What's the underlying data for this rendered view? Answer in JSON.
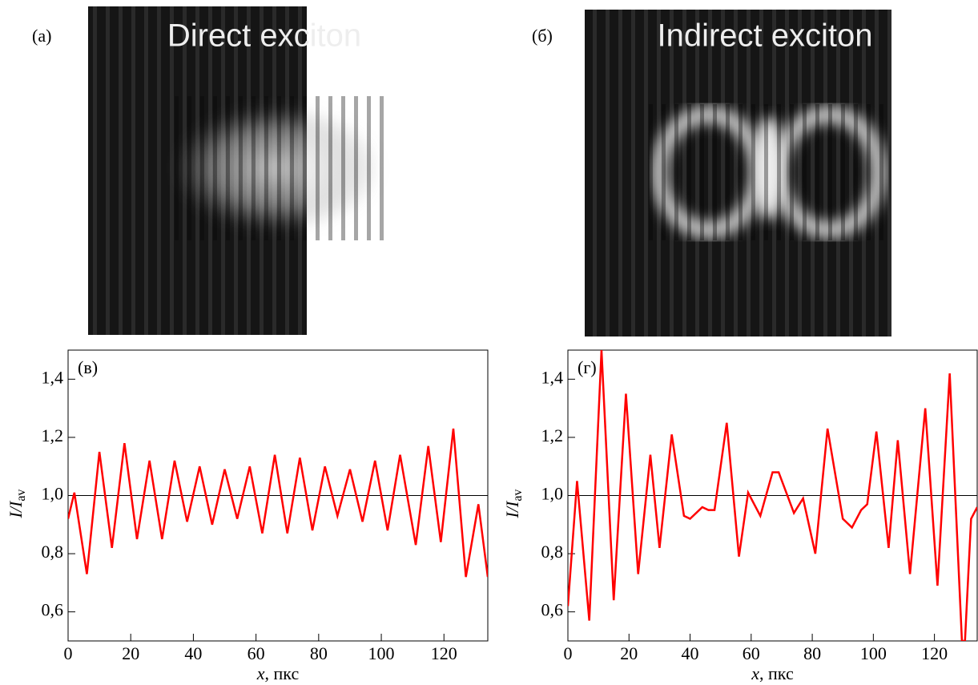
{
  "images": [
    {
      "label": "(a)",
      "title": "Direct exciton"
    },
    {
      "label": "(б)",
      "title": "Indirect exciton"
    }
  ],
  "chart_data": [
    {
      "type": "line",
      "panel": "(в)",
      "ylabel": "I/I",
      "ylabel_sub": "av",
      "xlabel_var": "x",
      "xlabel_unit": ", пкс",
      "color": "#ff0000",
      "hline": 1,
      "xlim": [
        0,
        134
      ],
      "ylim": [
        0.5,
        1.5
      ],
      "xticks": [
        0,
        20,
        40,
        60,
        80,
        100,
        120
      ],
      "yticks": [
        {
          "value": 0.6,
          "label": "0,6"
        },
        {
          "value": 0.8,
          "label": "0,8"
        },
        {
          "value": 1.0,
          "label": "1,0"
        },
        {
          "value": 1.2,
          "label": "1,2"
        },
        {
          "value": 1.4,
          "label": "1,4"
        }
      ],
      "x": [
        0,
        2,
        6,
        10,
        14,
        18,
        22,
        26,
        30,
        34,
        38,
        42,
        46,
        50,
        54,
        58,
        62,
        66,
        70,
        74,
        78,
        82,
        86,
        90,
        94,
        98,
        102,
        106,
        111,
        115,
        119,
        123,
        127,
        131,
        134
      ],
      "values": [
        0.92,
        1.01,
        0.73,
        1.15,
        0.82,
        1.18,
        0.85,
        1.12,
        0.85,
        1.12,
        0.91,
        1.1,
        0.9,
        1.09,
        0.92,
        1.1,
        0.87,
        1.14,
        0.87,
        1.13,
        0.88,
        1.1,
        0.93,
        1.09,
        0.91,
        1.12,
        0.88,
        1.14,
        0.83,
        1.17,
        0.84,
        1.23,
        0.72,
        0.97,
        0.72
      ]
    },
    {
      "type": "line",
      "panel": "(г)",
      "ylabel": "I/I",
      "ylabel_sub": "av",
      "xlabel_var": "x",
      "xlabel_unit": ", пкс",
      "color": "#ff0000",
      "hline": 1,
      "xlim": [
        0,
        134
      ],
      "ylim": [
        0.5,
        1.5
      ],
      "xticks": [
        0,
        20,
        40,
        60,
        80,
        100,
        120
      ],
      "yticks": [
        {
          "value": 0.6,
          "label": "0,6"
        },
        {
          "value": 0.8,
          "label": "0,8"
        },
        {
          "value": 1.0,
          "label": "1,0"
        },
        {
          "value": 1.2,
          "label": "1,2"
        },
        {
          "value": 1.4,
          "label": "1,4"
        }
      ],
      "x": [
        0,
        3,
        7,
        11,
        15,
        19,
        23,
        27,
        30,
        34,
        38,
        40,
        44,
        46,
        48,
        52,
        56,
        59,
        63,
        67,
        69,
        74,
        77,
        81,
        85,
        90,
        93,
        96,
        98,
        101,
        105,
        108,
        112,
        117,
        121,
        125,
        129,
        130,
        132,
        134
      ],
      "values": [
        0.62,
        1.05,
        0.57,
        1.5,
        0.64,
        1.35,
        0.73,
        1.14,
        0.82,
        1.21,
        0.93,
        0.92,
        0.96,
        0.95,
        0.95,
        1.25,
        0.79,
        1.01,
        0.93,
        1.08,
        1.08,
        0.94,
        0.99,
        0.8,
        1.23,
        0.92,
        0.89,
        0.95,
        0.97,
        1.22,
        0.82,
        1.19,
        0.73,
        1.3,
        0.69,
        1.42,
        0.5,
        0.5,
        0.92,
        0.96
      ]
    }
  ]
}
